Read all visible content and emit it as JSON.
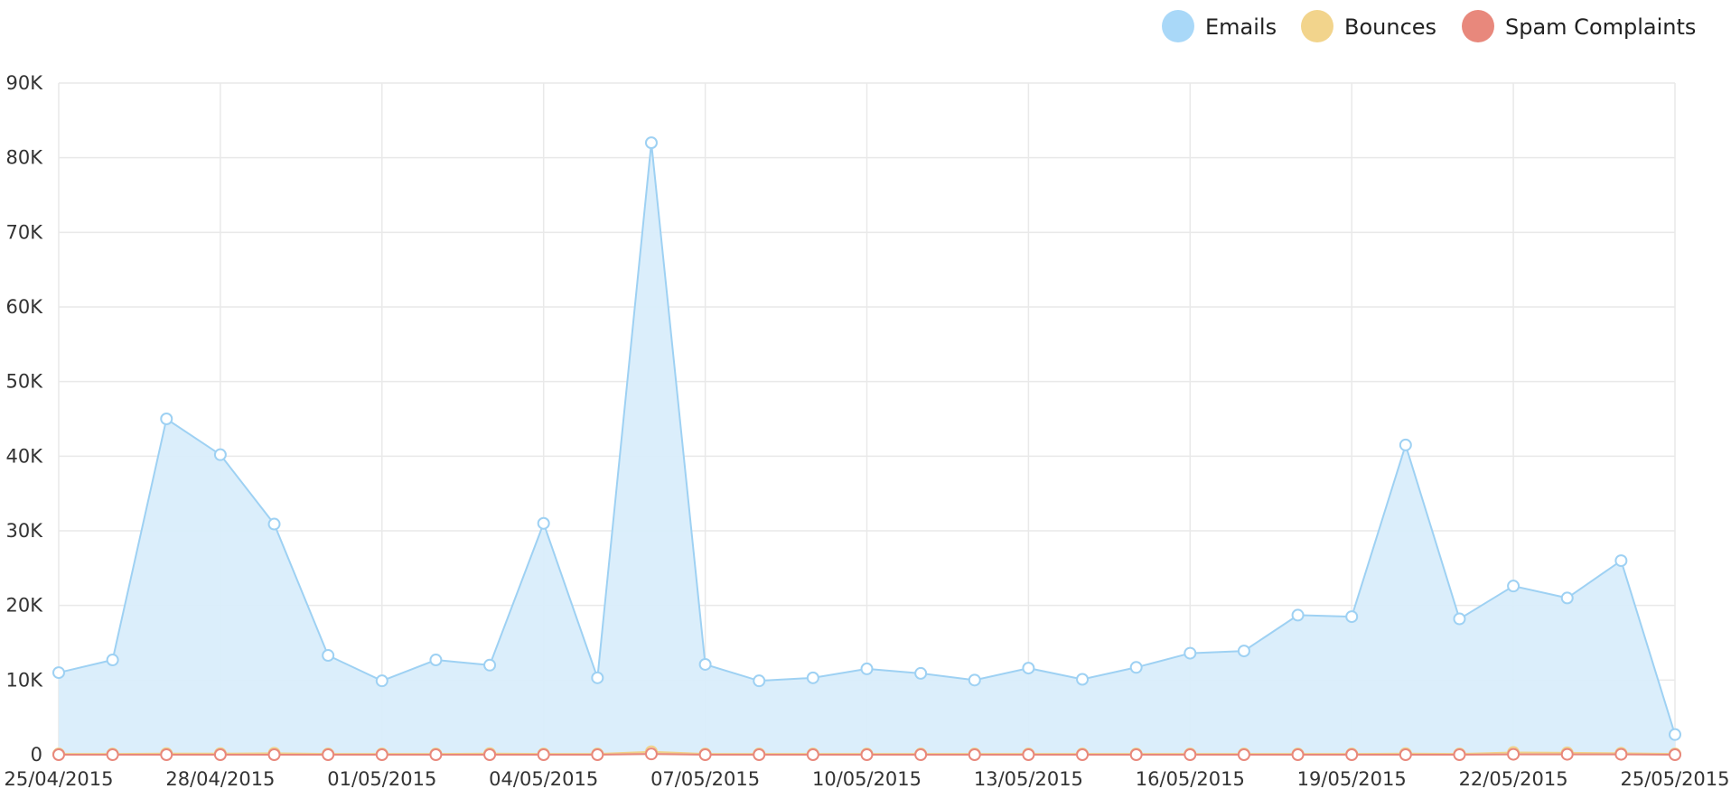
{
  "chart_data": {
    "type": "area",
    "title": "",
    "xlabel": "",
    "ylabel": "",
    "ylim": [
      0,
      90000
    ],
    "grid": true,
    "legend_position": "top-right",
    "y_ticks": [
      "0",
      "10K",
      "20K",
      "30K",
      "40K",
      "50K",
      "60K",
      "70K",
      "80K",
      "90K"
    ],
    "y_tick_values": [
      0,
      10000,
      20000,
      30000,
      40000,
      50000,
      60000,
      70000,
      80000,
      90000
    ],
    "x": [
      "25/04/2015",
      "26/04/2015",
      "27/04/2015",
      "28/04/2015",
      "29/04/2015",
      "30/04/2015",
      "01/05/2015",
      "02/05/2015",
      "03/05/2015",
      "04/05/2015",
      "05/05/2015",
      "06/05/2015",
      "07/05/2015",
      "08/05/2015",
      "09/05/2015",
      "10/05/2015",
      "11/05/2015",
      "12/05/2015",
      "13/05/2015",
      "14/05/2015",
      "15/05/2015",
      "16/05/2015",
      "17/05/2015",
      "18/05/2015",
      "19/05/2015",
      "20/05/2015",
      "21/05/2015",
      "22/05/2015",
      "23/05/2015",
      "24/05/2015",
      "25/05/2015"
    ],
    "x_tick_labels": [
      "25/04/2015",
      "28/04/2015",
      "01/05/2015",
      "04/05/2015",
      "07/05/2015",
      "10/05/2015",
      "13/05/2015",
      "16/05/2015",
      "19/05/2015",
      "22/05/2015",
      "25/05/2015"
    ],
    "series": [
      {
        "name": "Emails",
        "color": "#a9d8f8",
        "line_color": "#9ed1f3",
        "fill_color": "#d9edfb",
        "values": [
          11000,
          12700,
          45000,
          40200,
          30900,
          13300,
          9900,
          12700,
          12000,
          31000,
          10300,
          82000,
          12100,
          9900,
          10300,
          11500,
          10900,
          10000,
          11600,
          10100,
          11700,
          13600,
          13900,
          18700,
          18500,
          41500,
          18200,
          22600,
          21000,
          26000,
          2700
        ]
      },
      {
        "name": "Bounces",
        "color": "#f2d48c",
        "line_color": "#f0d28a",
        "fill_color": "#f6e4b8",
        "values": [
          100,
          100,
          150,
          150,
          200,
          100,
          100,
          100,
          150,
          100,
          100,
          400,
          100,
          100,
          100,
          100,
          100,
          100,
          100,
          100,
          100,
          100,
          100,
          100,
          100,
          150,
          100,
          300,
          250,
          200,
          100
        ]
      },
      {
        "name": "Spam Complaints",
        "color": "#e8887c",
        "line_color": "#e8887c",
        "fill_color": "#f0b1a9",
        "values": [
          0,
          0,
          0,
          0,
          0,
          0,
          0,
          0,
          0,
          0,
          0,
          100,
          0,
          0,
          0,
          0,
          0,
          0,
          0,
          0,
          0,
          0,
          0,
          0,
          0,
          0,
          0,
          50,
          50,
          50,
          0
        ]
      }
    ]
  }
}
